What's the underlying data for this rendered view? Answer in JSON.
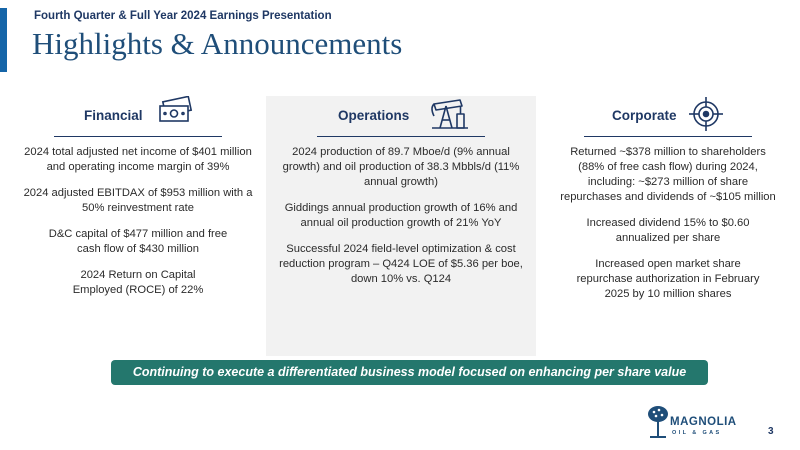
{
  "header": {
    "supertitle": "Fourth Quarter & Full Year 2024 Earnings Presentation",
    "title": "Highlights & Announcements"
  },
  "columns": {
    "financial": {
      "title": "Financial",
      "icon": "money-bills-icon",
      "paragraphs": [
        "2024 total adjusted net income of $401 million and operating income margin of 39%",
        "2024 adjusted EBITDAX of $953 million with a 50% reinvestment rate",
        "D&C capital of $477 million and free cash flow of $430 million",
        "2024 Return on Capital Employed (ROCE) of 22%"
      ]
    },
    "operations": {
      "title": "Operations",
      "icon": "pumpjack-icon",
      "paragraphs": [
        "2024 production of 89.7 Mboe/d (9% annual growth) and oil production of 38.3 Mbbls/d (11% annual growth)",
        "Giddings annual production growth of 16% and annual oil production growth of 21% YoY",
        "Successful 2024 field-level optimization & cost reduction program – Q424 LOE of $5.36 per boe, down 10% vs. Q124"
      ]
    },
    "corporate": {
      "title": "Corporate",
      "icon": "target-icon",
      "paragraphs": [
        "Returned ~$378 million to shareholders (88% of free cash flow) during 2024, including: ~$273 million of share repurchases and dividends of ~$105 million",
        "Increased dividend 15% to $0.60 annualized per share",
        "Increased open market share repurchase authorization in February 2025 by 10 million shares"
      ]
    }
  },
  "banner": {
    "text": "Continuing to execute a differentiated business model focused on enhancing per share value"
  },
  "footer": {
    "logo_name": "MAGNOLIA",
    "logo_sub": "OIL & GAS",
    "page_number": "3"
  },
  "colors": {
    "accent_blue": "#1565a8",
    "title_navy": "#1f4e79",
    "banner_teal": "#24776d",
    "ops_panel_gray": "#f2f2f2"
  }
}
